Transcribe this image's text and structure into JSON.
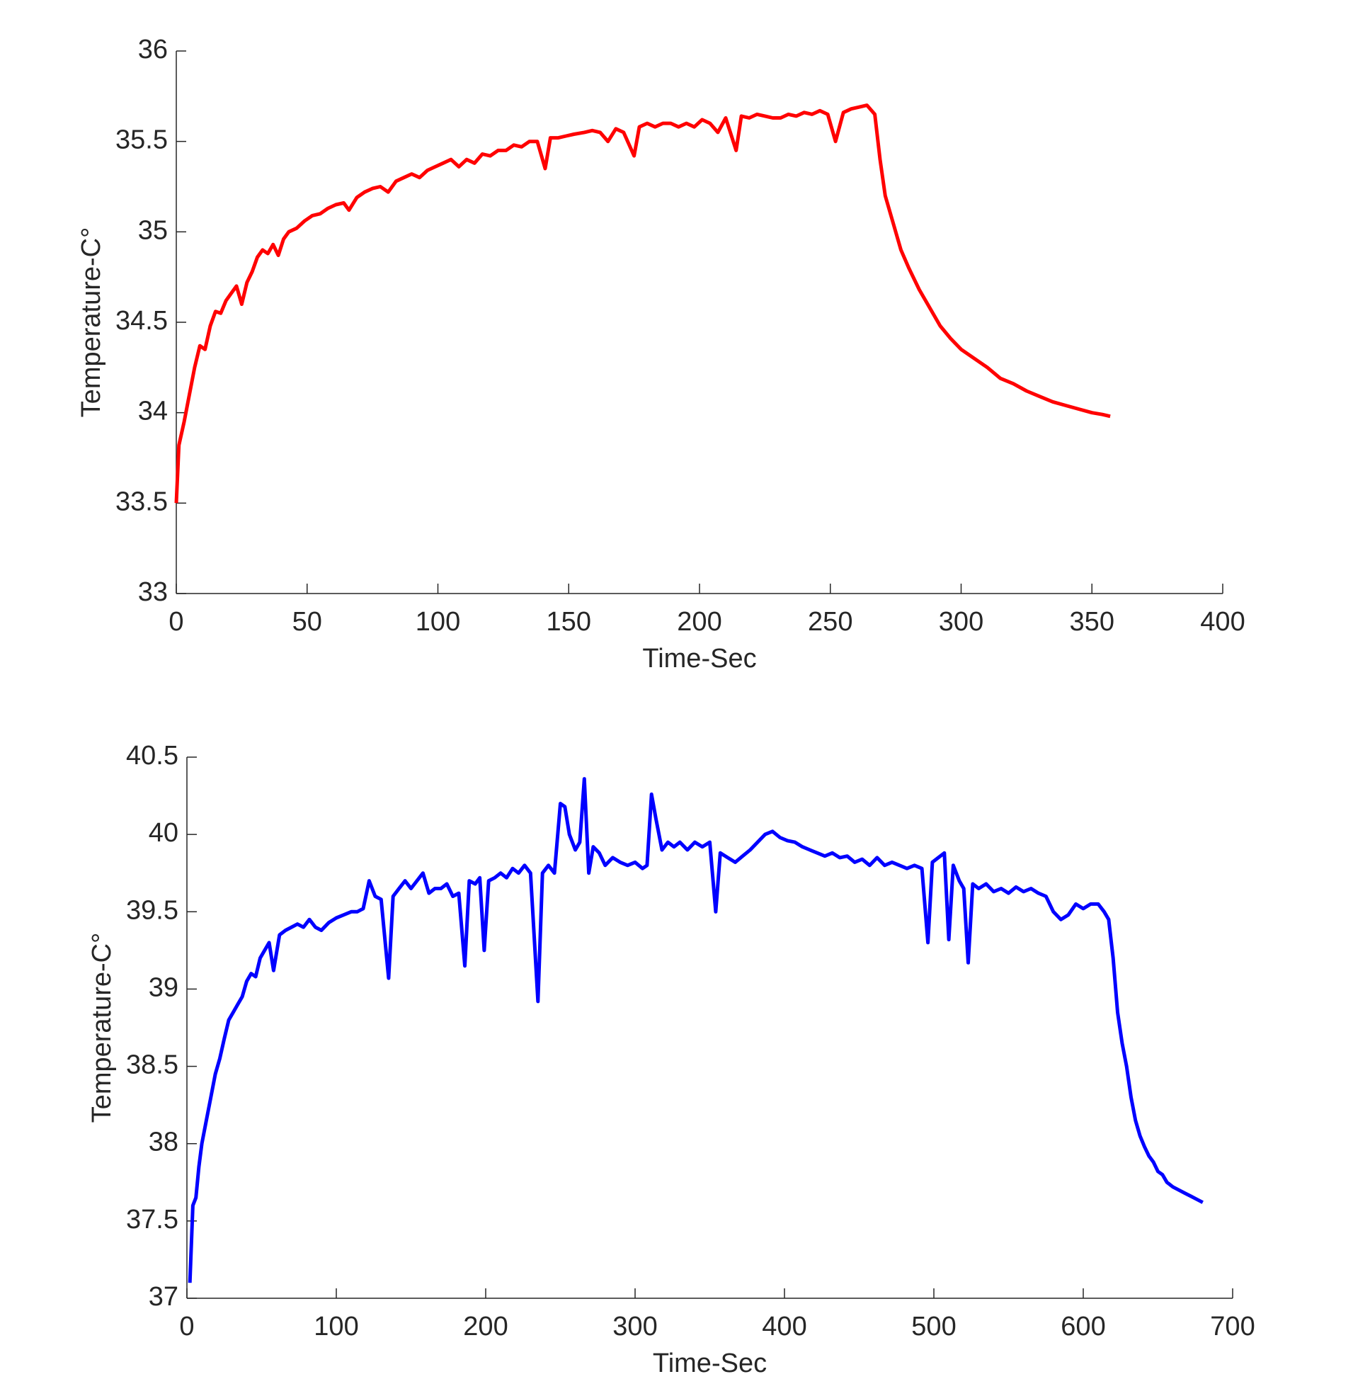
{
  "chart_data": [
    {
      "type": "line",
      "xlabel": "Time-Sec",
      "ylabel": "Temperature-C°",
      "color": "#ff0000",
      "xlim": [
        0,
        400
      ],
      "xticks": [
        0,
        50,
        100,
        150,
        200,
        250,
        300,
        350,
        400
      ],
      "ylim": [
        33,
        36
      ],
      "yticks": [
        33,
        33.5,
        34,
        34.5,
        35,
        35.5,
        36
      ],
      "x": [
        0,
        1,
        3,
        5,
        7,
        9,
        11,
        13,
        15,
        17,
        19,
        21,
        23,
        25,
        27,
        29,
        31,
        33,
        35,
        37,
        39,
        41,
        43,
        46,
        49,
        52,
        55,
        58,
        61,
        64,
        66,
        69,
        72,
        75,
        78,
        81,
        84,
        87,
        90,
        93,
        96,
        99,
        102,
        105,
        108,
        111,
        114,
        117,
        120,
        123,
        126,
        129,
        132,
        135,
        138,
        141,
        143,
        146,
        149,
        152,
        156,
        159,
        162,
        165,
        168,
        171,
        175,
        177,
        180,
        183,
        186,
        189,
        192,
        195,
        198,
        201,
        204,
        207,
        210,
        214,
        216,
        219,
        222,
        225,
        228,
        231,
        234,
        237,
        240,
        243,
        246,
        249,
        252,
        255,
        258,
        261,
        264,
        267,
        269,
        271,
        274,
        277,
        280,
        284,
        288,
        292,
        296,
        300,
        305,
        310,
        315,
        320,
        325,
        330,
        335,
        340,
        345,
        350,
        354,
        357
      ],
      "values": [
        33.5,
        33.82,
        33.95,
        34.1,
        34.25,
        34.37,
        34.35,
        34.48,
        34.56,
        34.55,
        34.62,
        34.66,
        34.7,
        34.6,
        34.72,
        34.78,
        34.86,
        34.9,
        34.88,
        34.93,
        34.87,
        34.96,
        35.0,
        35.02,
        35.06,
        35.09,
        35.1,
        35.13,
        35.15,
        35.16,
        35.12,
        35.19,
        35.22,
        35.24,
        35.25,
        35.22,
        35.28,
        35.3,
        35.32,
        35.3,
        35.34,
        35.36,
        35.38,
        35.4,
        35.36,
        35.4,
        35.38,
        35.43,
        35.42,
        35.45,
        35.45,
        35.48,
        35.47,
        35.5,
        35.5,
        35.35,
        35.52,
        35.52,
        35.53,
        35.54,
        35.55,
        35.56,
        35.55,
        35.5,
        35.57,
        35.55,
        35.42,
        35.58,
        35.6,
        35.58,
        35.6,
        35.6,
        35.58,
        35.6,
        35.58,
        35.62,
        35.6,
        35.55,
        35.63,
        35.45,
        35.64,
        35.63,
        35.65,
        35.64,
        35.63,
        35.63,
        35.65,
        35.64,
        35.66,
        35.65,
        35.67,
        35.65,
        35.5,
        35.66,
        35.68,
        35.69,
        35.7,
        35.65,
        35.4,
        35.2,
        35.05,
        34.9,
        34.8,
        34.68,
        34.58,
        34.48,
        34.41,
        34.35,
        34.3,
        34.25,
        34.19,
        34.16,
        34.12,
        34.09,
        34.06,
        34.04,
        34.02,
        34.0,
        33.99,
        33.98
      ]
    },
    {
      "type": "line",
      "xlabel": "Time-Sec",
      "ylabel": "Temperature-C°",
      "color": "#0000ff",
      "xlim": [
        0,
        700
      ],
      "xticks": [
        0,
        100,
        200,
        300,
        400,
        500,
        600,
        700
      ],
      "ylim": [
        37,
        40.5
      ],
      "yticks": [
        37,
        37.5,
        38,
        38.5,
        39,
        39.5,
        40,
        40.5
      ],
      "x": [
        2,
        4,
        6,
        8,
        10,
        13,
        16,
        19,
        22,
        25,
        28,
        31,
        34,
        37,
        40,
        43,
        46,
        49,
        52,
        55,
        58,
        62,
        66,
        70,
        74,
        78,
        82,
        86,
        90,
        95,
        100,
        105,
        110,
        114,
        118,
        122,
        126,
        130,
        135,
        138,
        142,
        146,
        150,
        154,
        158,
        162,
        166,
        170,
        174,
        178,
        182,
        186,
        189,
        193,
        196,
        199,
        202,
        206,
        210,
        214,
        218,
        222,
        226,
        230,
        235,
        238,
        242,
        246,
        250,
        253,
        256,
        260,
        263,
        266,
        269,
        272,
        276,
        280,
        285,
        290,
        295,
        300,
        305,
        308,
        311,
        314,
        318,
        322,
        326,
        330,
        335,
        340,
        345,
        350,
        354,
        357,
        362,
        367,
        372,
        377,
        382,
        387,
        392,
        397,
        402,
        407,
        412,
        417,
        422,
        427,
        432,
        437,
        442,
        447,
        452,
        457,
        462,
        467,
        472,
        477,
        482,
        487,
        492,
        496,
        499,
        503,
        507,
        510,
        513,
        517,
        520,
        523,
        526,
        530,
        535,
        540,
        545,
        550,
        555,
        560,
        565,
        570,
        575,
        580,
        585,
        590,
        595,
        600,
        605,
        610,
        614,
        617,
        620,
        623,
        626,
        629,
        632,
        635,
        638,
        641,
        644,
        647,
        650,
        653,
        656,
        660,
        664,
        668,
        672,
        676,
        680
      ],
      "values": [
        37.1,
        37.6,
        37.65,
        37.85,
        38.0,
        38.15,
        38.3,
        38.45,
        38.55,
        38.68,
        38.8,
        38.85,
        38.9,
        38.95,
        39.05,
        39.1,
        39.08,
        39.2,
        39.25,
        39.3,
        39.12,
        39.35,
        39.38,
        39.4,
        39.42,
        39.4,
        39.45,
        39.4,
        39.38,
        39.43,
        39.46,
        39.48,
        39.5,
        39.5,
        39.52,
        39.7,
        39.6,
        39.58,
        39.07,
        39.6,
        39.65,
        39.7,
        39.65,
        39.7,
        39.75,
        39.62,
        39.65,
        39.65,
        39.68,
        39.6,
        39.62,
        39.15,
        39.7,
        39.68,
        39.72,
        39.25,
        39.7,
        39.72,
        39.75,
        39.72,
        39.78,
        39.75,
        39.8,
        39.75,
        38.92,
        39.75,
        39.8,
        39.75,
        40.2,
        40.18,
        40.0,
        39.9,
        39.95,
        40.36,
        39.75,
        39.92,
        39.88,
        39.8,
        39.85,
        39.82,
        39.8,
        39.82,
        39.78,
        39.8,
        40.26,
        40.1,
        39.9,
        39.95,
        39.92,
        39.95,
        39.9,
        39.95,
        39.92,
        39.95,
        39.5,
        39.88,
        39.85,
        39.82,
        39.86,
        39.9,
        39.95,
        40.0,
        40.02,
        39.98,
        39.96,
        39.95,
        39.92,
        39.9,
        39.88,
        39.86,
        39.88,
        39.85,
        39.86,
        39.82,
        39.84,
        39.8,
        39.85,
        39.8,
        39.82,
        39.8,
        39.78,
        39.8,
        39.78,
        39.3,
        39.82,
        39.85,
        39.88,
        39.32,
        39.8,
        39.7,
        39.65,
        39.17,
        39.68,
        39.65,
        39.68,
        39.63,
        39.65,
        39.62,
        39.66,
        39.63,
        39.65,
        39.62,
        39.6,
        39.5,
        39.45,
        39.48,
        39.55,
        39.52,
        39.55,
        39.55,
        39.5,
        39.45,
        39.2,
        38.85,
        38.65,
        38.5,
        38.3,
        38.15,
        38.05,
        37.98,
        37.92,
        37.88,
        37.82,
        37.8,
        37.75,
        37.72,
        37.7,
        37.68,
        37.66,
        37.64,
        37.62
      ]
    }
  ]
}
